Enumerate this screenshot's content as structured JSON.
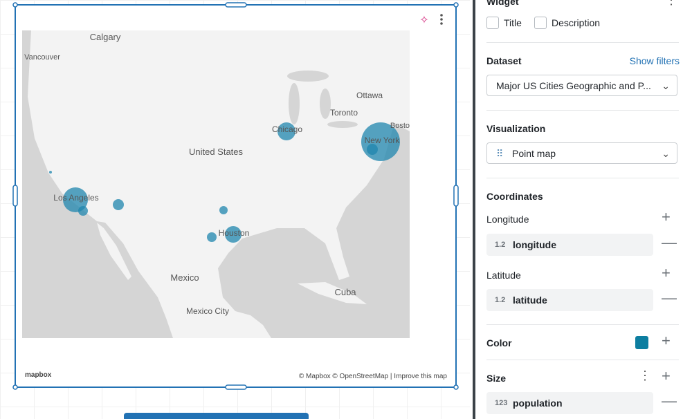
{
  "map": {
    "labels": [
      "Calgary",
      "Vancouver",
      "Ottawa",
      "Toronto",
      "Chicago",
      "Bosto",
      "New York",
      "United States",
      "Los Angeles",
      "Houston",
      "Mexico",
      "Cuba",
      "Mexico City"
    ],
    "logo": "mapbox",
    "attribution": "© Mapbox © OpenStreetMap | Improve this map"
  },
  "panel": {
    "widget": {
      "heading": "Widget",
      "options": [
        "Title",
        "Description"
      ]
    },
    "dataset": {
      "label": "Dataset",
      "link": "Show filters",
      "value": "Major US Cities Geographic and P..."
    },
    "visualization": {
      "label": "Visualization",
      "value": "Point map"
    },
    "coordinates": {
      "label": "Coordinates",
      "longitude": {
        "label": "Longitude",
        "type": "1.2",
        "field": "longitude"
      },
      "latitude": {
        "label": "Latitude",
        "type": "1.2",
        "field": "latitude"
      }
    },
    "color": {
      "label": "Color"
    },
    "size": {
      "label": "Size",
      "type": "123",
      "field": "population"
    }
  }
}
